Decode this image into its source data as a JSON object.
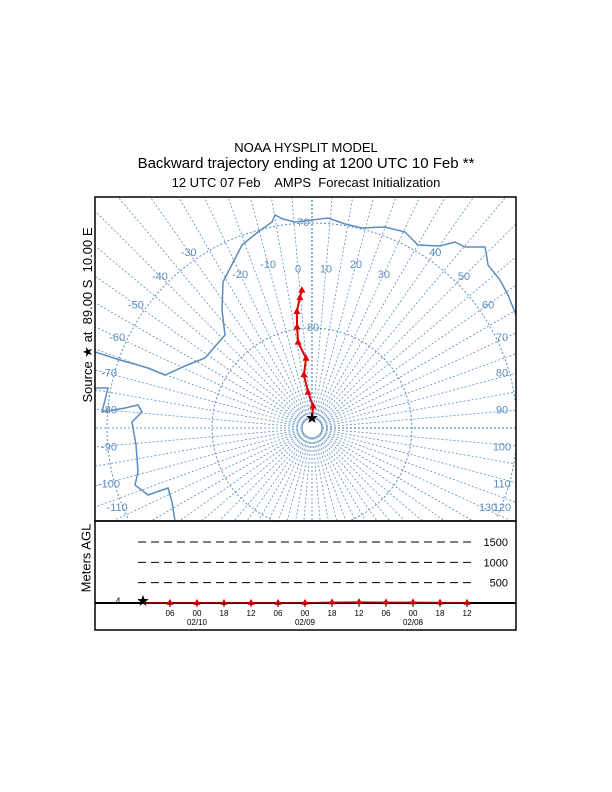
{
  "title": {
    "line1": "NOAA HYSPLIT MODEL",
    "line2": "Backward trajectory ending at 1200 UTC 10 Feb **",
    "line3": "12 UTC 07 Feb    AMPS  Forecast Initialization"
  },
  "source_label": "Source ★ at  89.00 S  10.00 E",
  "height_axis_label": "Meters AGL",
  "source": {
    "lat": -89.0,
    "lon": 10.0
  },
  "colors": {
    "grid": "#5b8dbf",
    "trajectory": "#e00000",
    "frame": "#000000"
  },
  "map": {
    "latitude_label": "80",
    "latitude_label_70": "70",
    "longitude_labels": [
      "-110",
      "-100",
      "-90",
      "-80",
      "-70",
      "-60",
      "-50",
      "-40",
      "-30",
      "-20",
      "-10",
      "0",
      "10",
      "20",
      "30",
      "40",
      "50",
      "60",
      "70",
      "80",
      "90",
      "100",
      "110",
      "120",
      "130"
    ]
  },
  "trajectory": [
    {
      "lat": -89.0,
      "lon": 10.0
    },
    {
      "lat": -87.8,
      "lon": 12.6
    },
    {
      "lat": -86.4,
      "lon": 3.7
    },
    {
      "lat": -84.6,
      "lon": 1.4
    },
    {
      "lat": -83.0,
      "lon": 5.1
    },
    {
      "lat": -81.3,
      "lon": 0.8
    },
    {
      "lat": -79.8,
      "lon": 1.6
    },
    {
      "lat": -78.3,
      "lon": 2.6
    },
    {
      "lat": -77.0,
      "lon": 4.7
    },
    {
      "lat": -76.3,
      "lon": 5.8
    }
  ],
  "height_panel": {
    "levels": [
      "1500",
      "1000",
      "500"
    ],
    "source_height": "4",
    "time_ticks": [
      "06",
      "00",
      "18",
      "12",
      "06",
      "00",
      "18",
      "12",
      "06",
      "00",
      "18",
      "12"
    ],
    "date_labels": [
      {
        "index": 1,
        "text": "02/10"
      },
      {
        "index": 5,
        "text": "02/09"
      },
      {
        "index": 9,
        "text": "02/08"
      }
    ],
    "heights_m": [
      4,
      2,
      2,
      2,
      2,
      2,
      2,
      15,
      20,
      15,
      15,
      10,
      5
    ]
  }
}
